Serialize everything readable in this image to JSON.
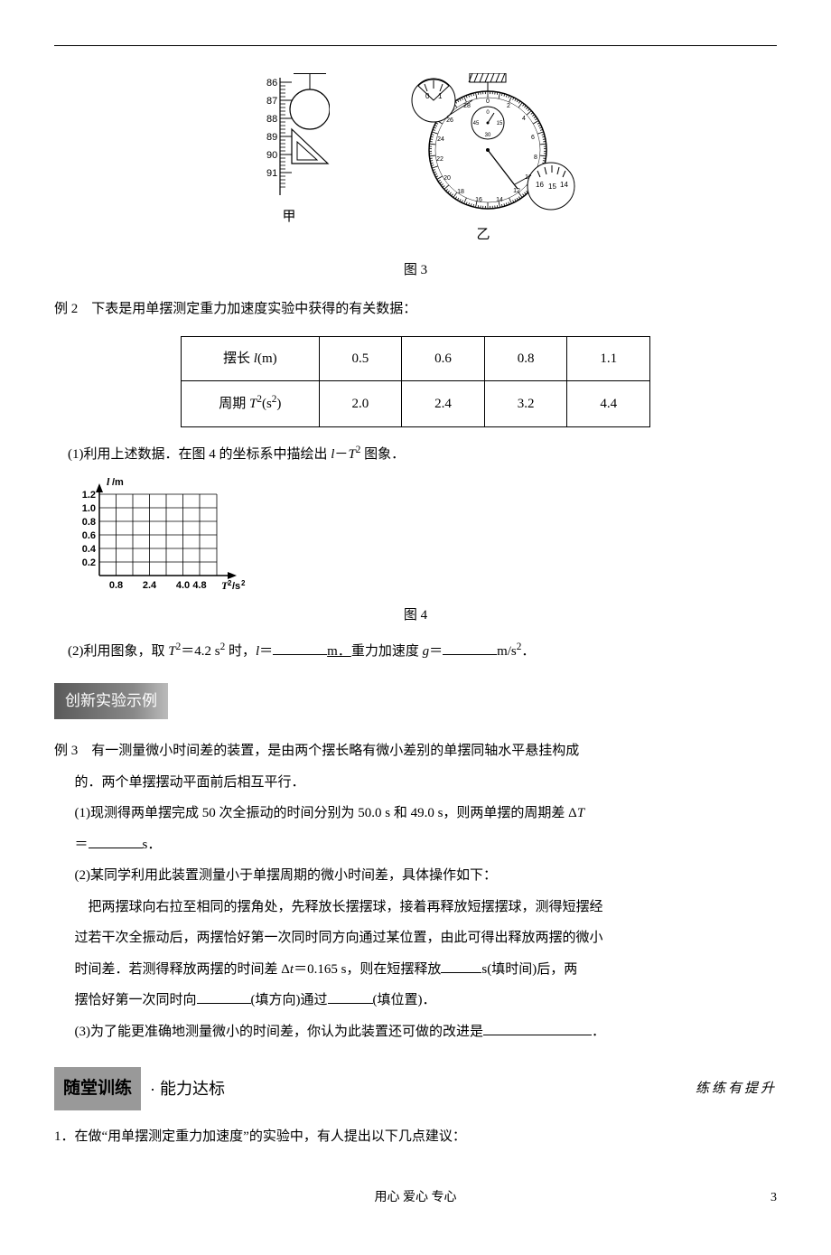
{
  "figures": {
    "fig3": {
      "caption": "图 3",
      "ruler": {
        "label_below": "甲",
        "ticks": [
          86,
          87,
          88,
          89,
          90,
          91
        ]
      },
      "stopwatch": {
        "label_below": "乙",
        "small_dial_numbers": [
          "0",
          "15",
          "30",
          "45"
        ],
        "main_dial_numbers": [
          "0",
          "1",
          "2",
          "3",
          "4",
          "5",
          "6",
          "7",
          "8",
          "9",
          "10",
          "11",
          "12",
          "13",
          "14",
          "15",
          "16",
          "17",
          "18",
          "19",
          "20",
          "21",
          "22",
          "23",
          "24",
          "25",
          "26",
          "27",
          "28",
          "29"
        ],
        "zoom_left": [
          "0",
          "1"
        ],
        "zoom_right": [
          "14",
          "15",
          "16"
        ]
      }
    },
    "fig4": {
      "caption": "图 4",
      "ylabel": "l/m",
      "xlabel": "T²/s²",
      "yticks": [
        "0.2",
        "0.4",
        "0.6",
        "0.8",
        "1.0",
        "1.2"
      ],
      "xticks": [
        "0.8",
        "2.4",
        "4.0",
        "4.8"
      ],
      "xtick_positions": [
        0.8,
        2.4,
        4.0,
        4.8
      ],
      "ylim": [
        0,
        1.2
      ],
      "xlim": [
        0,
        5.6
      ],
      "grid": true,
      "background": "#ffffff",
      "grid_color": "#000000",
      "axis_color": "#000000",
      "fontsize": 11,
      "font_weight": "bold"
    }
  },
  "example2": {
    "label": "例 2",
    "intro": "下表是用单摆测定重力加速度实验中获得的有关数据：",
    "table": {
      "columns": [
        "摆长 l(m)",
        "0.5",
        "0.6",
        "0.8",
        "1.1"
      ],
      "row2": [
        "周期 T²(s²)",
        "2.0",
        "2.4",
        "3.2",
        "4.4"
      ],
      "cell_align": "center"
    },
    "q1": "(1)利用上述数据．在图 4 的坐标系中描绘出 l－T² 图象．",
    "q2_pre": "(2)利用图象，取 T²＝4.2 s² 时，l＝",
    "q2_mid": "m．重力加速度 g＝",
    "q2_unit": "m/s²．"
  },
  "banner1": "创新实验示例",
  "example3": {
    "label": "例 3",
    "intro": "有一测量微小时间差的装置，是由两个摆长略有微小差别的单摆同轴水平悬挂构成的．两个单摆摆动平面前后相互平行．",
    "q1_pre": "(1)现测得两单摆完成 50 次全振动的时间分别为 50.0 s 和 49.0 s，则两单摆的周期差 ΔT＝",
    "q1_unit": "s．",
    "q2_head": "(2)某同学利用此装置测量小于单摆周期的微小时间差，具体操作如下：",
    "q2_body1": "把两摆球向右拉至相同的摆角处，先释放长摆摆球，接着再释放短摆摆球，测得短摆经过若干次全振动后，两摆恰好第一次同时同方向通过某位置，由此可得出释放两摆的微小时间差．若测得释放两摆的时间差 Δt＝0.165 s，则在短摆释放",
    "q2_fill1_hint": "s(填时间)后，两摆恰好第一次同时向",
    "q2_fill2_hint": "(填方向)通过",
    "q2_fill3_hint": "(填位置)．",
    "q3_pre": "(3)为了能更准确地测量微小的时间差，你认为此装置还可做的改进是",
    "q3_end": "．"
  },
  "section2": {
    "title_main": "随堂训练",
    "bullet": "·",
    "title_sub": "能力达标",
    "hint": "练练有提升"
  },
  "question1": {
    "num": "1．",
    "text": "在做“用单摆测定重力加速度”的实验中，有人提出以下几点建议："
  },
  "footer": {
    "motto": "用心  爱心  专心",
    "page": "3"
  }
}
